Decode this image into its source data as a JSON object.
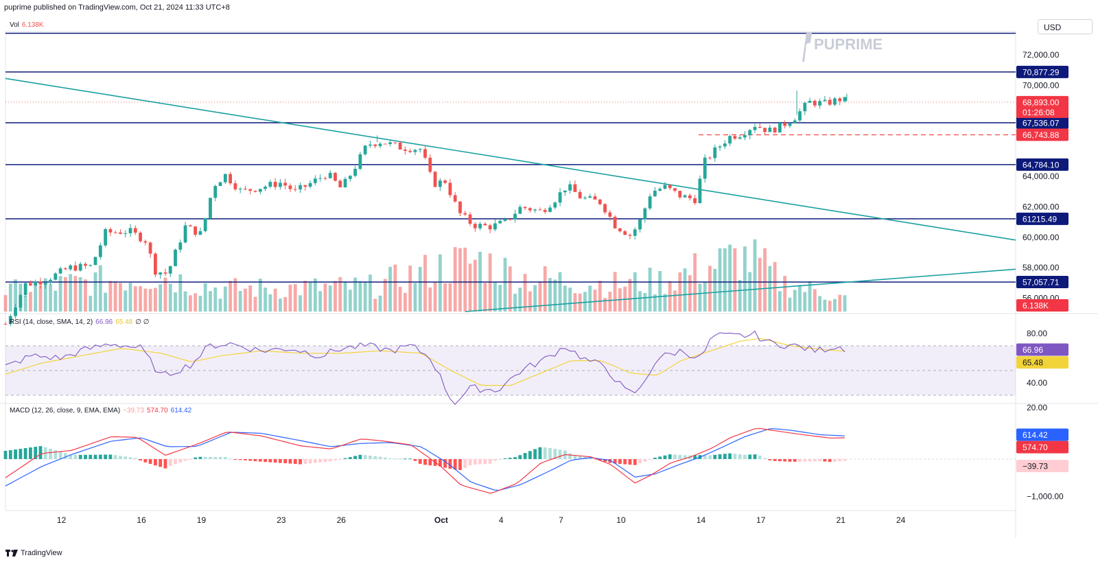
{
  "header": {
    "published": "puprime published on TradingView.com, Oct 21, 2024 11:33 UTC+8"
  },
  "currency": "USD",
  "watermark": "PUPRIME",
  "footer": {
    "brand": "TradingView"
  },
  "colors": {
    "up": "#26a69a",
    "down": "#ef5350",
    "level": "#0d1a7a",
    "trend": "#1a9fa0",
    "rsi": "#7e57c2",
    "rsi_ma": "#f2d43a",
    "macd": "#2962ff",
    "signal": "#f23645"
  },
  "price_pane": {
    "vol_label": "Vol",
    "vol_value": "6.138K",
    "y_ticks": [
      "72,000.00",
      "70,000.00",
      "64,000.00",
      "62,000.00",
      "60,000.00",
      "58,000.00",
      "56,000.00"
    ],
    "levels": [
      {
        "value": 70877.29,
        "label": "70,877.29"
      },
      {
        "value": 67536.07,
        "label": "67,536.07"
      },
      {
        "value": 64784.1,
        "label": "64,784.10"
      },
      {
        "value": 61215.49,
        "label": 61215.49
      },
      {
        "value": 57057.71,
        "label": "57,057.71"
      }
    ],
    "top_line_value": 73420,
    "current_price": {
      "value": 68893.0,
      "label": "68,893.00",
      "countdown": "01:26:08"
    },
    "dashed_level": {
      "value": 66743.88,
      "label": "66,743.88"
    },
    "vol_badge": "6.138K"
  },
  "x_axis": {
    "ticks": [
      {
        "label": "12",
        "day": 12
      },
      {
        "label": "16",
        "day": 16
      },
      {
        "label": "19",
        "day": 19
      },
      {
        "label": "23",
        "day": 23
      },
      {
        "label": "26",
        "day": 26
      },
      {
        "label": "Oct",
        "day": 31
      },
      {
        "label": "4",
        "day": 34
      },
      {
        "label": "7",
        "day": 37
      },
      {
        "label": "10",
        "day": 40
      },
      {
        "label": "14",
        "day": 44
      },
      {
        "label": "17",
        "day": 47
      },
      {
        "label": "21",
        "day": 51
      },
      {
        "label": "24",
        "day": 54
      }
    ]
  },
  "rsi_pane": {
    "label": "RSI (14, close, SMA, 14, 2)",
    "rsi_value": "66.96",
    "ma_value": "65.48",
    "extra": "∅ ∅",
    "y_ticks": [
      "80.00",
      "40.00",
      "20.00"
    ],
    "badges": [
      "66.96",
      "65.48"
    ]
  },
  "macd_pane": {
    "label": "MACD (12, 26, close, 9, EMA, EMA)",
    "hist_value": "−39.73",
    "macd_value": "574.70",
    "signal_value": "614.42",
    "y_ticks": [
      "−1,000.00"
    ],
    "badges": [
      "614.42",
      "574.70",
      "−39.73"
    ]
  },
  "chart_data": {
    "type": "candlestick",
    "symbol_currency": "USD",
    "x_unit": "day (Sep 1 = 1; Oct 1 = 31)",
    "start_day": 9.2,
    "end_day": 51.4,
    "bars_per_day": 4,
    "close_keypoints": [
      [
        9.2,
        54300
      ],
      [
        10.2,
        56900
      ],
      [
        11.2,
        57200
      ],
      [
        12.4,
        58000
      ],
      [
        13.5,
        58100
      ],
      [
        14.2,
        60300
      ],
      [
        15.4,
        60400
      ],
      [
        16.2,
        59800
      ],
      [
        16.7,
        57800
      ],
      [
        17.3,
        57600
      ],
      [
        18.2,
        60700
      ],
      [
        19.0,
        60200
      ],
      [
        19.6,
        63400
      ],
      [
        20.2,
        64100
      ],
      [
        21.0,
        63000
      ],
      [
        22.0,
        63300
      ],
      [
        23.0,
        63600
      ],
      [
        23.7,
        63000
      ],
      [
        24.4,
        63500
      ],
      [
        25.3,
        64200
      ],
      [
        26.0,
        63200
      ],
      [
        26.6,
        64400
      ],
      [
        27.3,
        66100
      ],
      [
        28.0,
        66300
      ],
      [
        29.0,
        65900
      ],
      [
        30.0,
        65800
      ],
      [
        30.6,
        63500
      ],
      [
        31.2,
        63700
      ],
      [
        31.9,
        61600
      ],
      [
        32.6,
        60800
      ],
      [
        33.5,
        60700
      ],
      [
        34.2,
        61000
      ],
      [
        35.0,
        62000
      ],
      [
        36.0,
        61700
      ],
      [
        36.7,
        62500
      ],
      [
        37.3,
        63400
      ],
      [
        38.0,
        62600
      ],
      [
        39.0,
        62300
      ],
      [
        39.7,
        60800
      ],
      [
        40.5,
        60100
      ],
      [
        41.0,
        61200
      ],
      [
        41.5,
        63000
      ],
      [
        42.2,
        63300
      ],
      [
        43.0,
        62700
      ],
      [
        43.7,
        62500
      ],
      [
        44.2,
        65000
      ],
      [
        44.7,
        65700
      ],
      [
        45.4,
        66600
      ],
      [
        46.0,
        66800
      ],
      [
        46.7,
        67400
      ],
      [
        47.4,
        67000
      ],
      [
        48.0,
        67300
      ],
      [
        48.7,
        67900
      ],
      [
        49.4,
        68900
      ],
      [
        50.2,
        68800
      ],
      [
        51.0,
        69100
      ],
      [
        51.4,
        68893
      ]
    ],
    "wick_highs": [
      [
        48.8,
        69650
      ],
      [
        51.3,
        69450
      ],
      [
        27.8,
        66700
      ]
    ],
    "volume_keypoints": [
      [
        9.2,
        1.8
      ],
      [
        12.0,
        2.4
      ],
      [
        16.8,
        3.2
      ],
      [
        20.0,
        2.0
      ],
      [
        27.5,
        2.2
      ],
      [
        31.6,
        4.2
      ],
      [
        33.0,
        4.5
      ],
      [
        35.0,
        3.0
      ],
      [
        39.8,
        2.4
      ],
      [
        42.0,
        2.7
      ],
      [
        45.9,
        4.8
      ],
      [
        46.8,
        4.4
      ],
      [
        48.0,
        2.6
      ],
      [
        51.4,
        1.1
      ]
    ],
    "volume_ticks_max": 6.138,
    "rsi_keypoints": [
      [
        9.2,
        53
      ],
      [
        10.5,
        62
      ],
      [
        12.0,
        60
      ],
      [
        13.0,
        66
      ],
      [
        14.5,
        72
      ],
      [
        16.0,
        68
      ],
      [
        17.0,
        45
      ],
      [
        18.5,
        55
      ],
      [
        19.4,
        70
      ],
      [
        20.4,
        72
      ],
      [
        22.0,
        66
      ],
      [
        23.5,
        68
      ],
      [
        25.0,
        62
      ],
      [
        26.0,
        68
      ],
      [
        27.3,
        70
      ],
      [
        28.5,
        66
      ],
      [
        29.5,
        70
      ],
      [
        30.5,
        60
      ],
      [
        31.6,
        23
      ],
      [
        32.5,
        36
      ],
      [
        33.8,
        34
      ],
      [
        35.0,
        50
      ],
      [
        36.3,
        60
      ],
      [
        37.2,
        70
      ],
      [
        38.2,
        59
      ],
      [
        39.2,
        53
      ],
      [
        40.3,
        32
      ],
      [
        40.9,
        33
      ],
      [
        41.8,
        60
      ],
      [
        43.0,
        66
      ],
      [
        44.0,
        60
      ],
      [
        44.6,
        78
      ],
      [
        45.9,
        78
      ],
      [
        46.7,
        79
      ],
      [
        47.5,
        72
      ],
      [
        48.7,
        70
      ],
      [
        49.8,
        66
      ],
      [
        50.8,
        70
      ],
      [
        51.4,
        66.96
      ]
    ],
    "rsi_ma_keypoints": [
      [
        9.2,
        47
      ],
      [
        11.0,
        56
      ],
      [
        13.0,
        62
      ],
      [
        15.0,
        68
      ],
      [
        17.0,
        64
      ],
      [
        18.5,
        57
      ],
      [
        20.0,
        62
      ],
      [
        22.0,
        66
      ],
      [
        24.0,
        64
      ],
      [
        26.0,
        64
      ],
      [
        28.0,
        66
      ],
      [
        30.0,
        64
      ],
      [
        31.5,
        50
      ],
      [
        33.0,
        38
      ],
      [
        34.5,
        38
      ],
      [
        36.0,
        48
      ],
      [
        37.5,
        58
      ],
      [
        39.0,
        58
      ],
      [
        40.5,
        48
      ],
      [
        41.8,
        46
      ],
      [
        43.0,
        58
      ],
      [
        44.5,
        66
      ],
      [
        46.0,
        74
      ],
      [
        47.0,
        76
      ],
      [
        48.5,
        70
      ],
      [
        50.0,
        67
      ],
      [
        51.4,
        65.48
      ]
    ],
    "rsi_range": [
      20,
      80
    ],
    "macd_keypoints": [
      [
        9.2,
        -500
      ],
      [
        11.0,
        150
      ],
      [
        12.5,
        230
      ],
      [
        14.5,
        600
      ],
      [
        15.8,
        580
      ],
      [
        17.2,
        100
      ],
      [
        18.8,
        400
      ],
      [
        20.3,
        730
      ],
      [
        22.0,
        620
      ],
      [
        24.0,
        350
      ],
      [
        25.5,
        270
      ],
      [
        27.0,
        540
      ],
      [
        28.0,
        490
      ],
      [
        29.5,
        380
      ],
      [
        31.0,
        -200
      ],
      [
        32.0,
        -700
      ],
      [
        33.5,
        -920
      ],
      [
        34.8,
        -650
      ],
      [
        36.0,
        -100
      ],
      [
        37.2,
        120
      ],
      [
        38.5,
        60
      ],
      [
        39.5,
        -150
      ],
      [
        40.7,
        -640
      ],
      [
        41.5,
        -430
      ],
      [
        42.5,
        -100
      ],
      [
        43.5,
        60
      ],
      [
        44.5,
        280
      ],
      [
        45.5,
        580
      ],
      [
        46.8,
        830
      ],
      [
        47.8,
        750
      ],
      [
        49.0,
        660
      ],
      [
        50.5,
        560
      ],
      [
        51.4,
        574.7
      ]
    ],
    "signal_keypoints": [
      [
        9.2,
        -720
      ],
      [
        11.0,
        -200
      ],
      [
        12.5,
        120
      ],
      [
        14.5,
        480
      ],
      [
        16.0,
        570
      ],
      [
        17.3,
        330
      ],
      [
        18.8,
        340
      ],
      [
        20.5,
        720
      ],
      [
        22.0,
        690
      ],
      [
        24.0,
        490
      ],
      [
        25.5,
        330
      ],
      [
        27.0,
        420
      ],
      [
        28.5,
        440
      ],
      [
        30.0,
        330
      ],
      [
        31.3,
        -100
      ],
      [
        32.5,
        -620
      ],
      [
        33.8,
        -850
      ],
      [
        35.0,
        -680
      ],
      [
        36.5,
        -300
      ],
      [
        37.5,
        -30
      ],
      [
        38.5,
        40
      ],
      [
        39.5,
        -40
      ],
      [
        40.7,
        -480
      ],
      [
        41.7,
        -400
      ],
      [
        42.8,
        -170
      ],
      [
        44.0,
        60
      ],
      [
        45.0,
        300
      ],
      [
        46.2,
        600
      ],
      [
        47.5,
        820
      ],
      [
        48.5,
        770
      ],
      [
        50.0,
        650
      ],
      [
        51.4,
        614.42
      ]
    ],
    "macd_range": [
      -1050,
      900
    ]
  }
}
